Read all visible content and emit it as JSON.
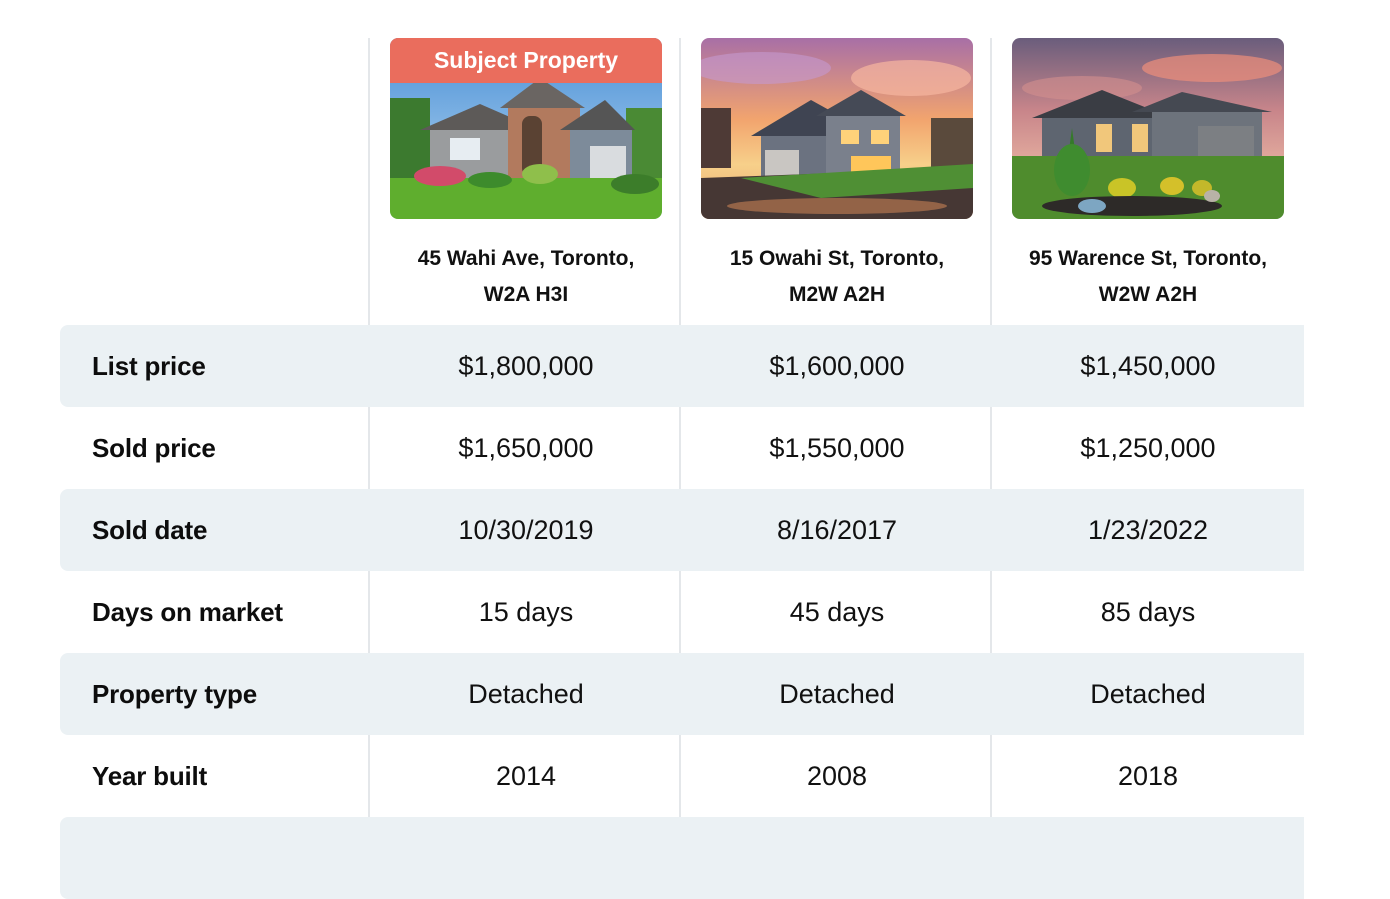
{
  "properties": [
    {
      "badge": "Subject Property",
      "address_line1": "45 Wahi Ave, Toronto,",
      "address_line2": "W2A H3I",
      "photo_icon": "house-photo"
    },
    {
      "badge": "",
      "address_line1": "15 Owahi St, Toronto,",
      "address_line2": "M2W A2H",
      "photo_icon": "house-photo-sunset"
    },
    {
      "badge": "",
      "address_line1": "95 Warence St, Toronto,",
      "address_line2": "W2W A2H",
      "photo_icon": "house-photo-bungalow"
    }
  ],
  "rows": [
    {
      "label": "List price",
      "values": [
        "$1,800,000",
        "$1,600,000",
        "$1,450,000"
      ]
    },
    {
      "label": "Sold price",
      "values": [
        "$1,650,000",
        "$1,550,000",
        "$1,250,000"
      ]
    },
    {
      "label": "Sold date",
      "values": [
        "10/30/2019",
        "8/16/2017",
        "1/23/2022"
      ]
    },
    {
      "label": "Days on market",
      "values": [
        "15 days",
        "45 days",
        "85 days"
      ]
    },
    {
      "label": "Property type",
      "values": [
        "Detached",
        "Detached",
        "Detached"
      ]
    },
    {
      "label": "Year built",
      "values": [
        "2014",
        "2008",
        "2018"
      ]
    }
  ],
  "colors": {
    "badge": "#ea6d5d",
    "row_shade": "#ebf1f4",
    "divider": "#e4e7ea"
  }
}
